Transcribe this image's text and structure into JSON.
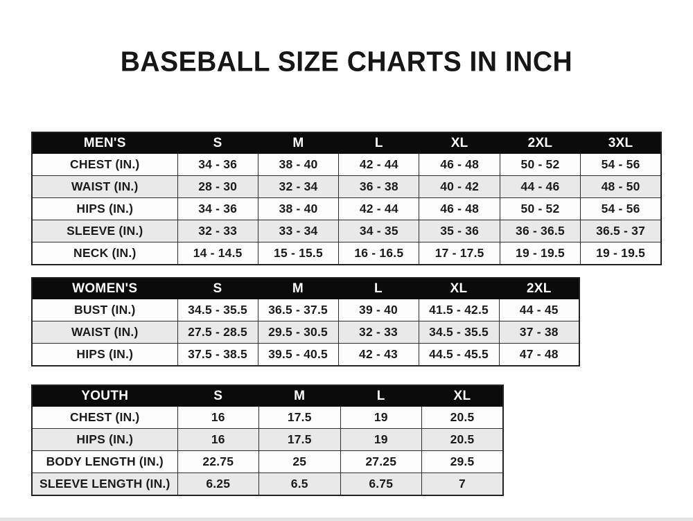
{
  "page": {
    "title": "BASEBALL SIZE CHARTS IN INCH"
  },
  "colors": {
    "header_bg": "#0b0b0b",
    "header_text": "#ffffff",
    "row_alt_bg": "#e9e9e9",
    "row_bg": "#fdfdfd",
    "border": "#2b2b2b",
    "text": "#1b1b1b"
  },
  "tables": [
    {
      "id": "mens",
      "name": "MEN'S",
      "header": [
        "MEN'S",
        "S",
        "M",
        "L",
        "XL",
        "2XL",
        "3XL"
      ],
      "rows": [
        [
          "CHEST (IN.)",
          "34 - 36",
          "38 - 40",
          "42 - 44",
          "46 - 48",
          "50 - 52",
          "54 - 56"
        ],
        [
          "WAIST (IN.)",
          "28 - 30",
          "32 - 34",
          "36 - 38",
          "40 - 42",
          "44 - 46",
          "48 - 50"
        ],
        [
          "HIPS (IN.)",
          "34 - 36",
          "38 - 40",
          "42 - 44",
          "46 - 48",
          "50 - 52",
          "54 - 56"
        ],
        [
          "SLEEVE (IN.)",
          "32 - 33",
          "33 - 34",
          "34 - 35",
          "35 - 36",
          "36 - 36.5",
          "36.5 - 37"
        ],
        [
          "NECK (IN.)",
          "14 - 14.5",
          "15 - 15.5",
          "16 - 16.5",
          "17 - 17.5",
          "19 - 19.5",
          "19 - 19.5"
        ]
      ]
    },
    {
      "id": "womens",
      "name": "WOMEN'S",
      "header": [
        "WOMEN'S",
        "S",
        "M",
        "L",
        "XL",
        "2XL"
      ],
      "rows": [
        [
          "BUST (IN.)",
          "34.5 - 35.5",
          "36.5 - 37.5",
          "39 - 40",
          "41.5 - 42.5",
          "44 - 45"
        ],
        [
          "WAIST (IN.)",
          "27.5 - 28.5",
          "29.5 - 30.5",
          "32 - 33",
          "34.5 - 35.5",
          "37 - 38"
        ],
        [
          "HIPS (IN.)",
          "37.5 - 38.5",
          "39.5 - 40.5",
          "42 - 43",
          "44.5 - 45.5",
          "47 - 48"
        ]
      ]
    },
    {
      "id": "youth",
      "name": "YOUTH",
      "header": [
        "YOUTH",
        "S",
        "M",
        "L",
        "XL"
      ],
      "rows": [
        [
          "CHEST (IN.)",
          "16",
          "17.5",
          "19",
          "20.5"
        ],
        [
          "HIPS (IN.)",
          "16",
          "17.5",
          "19",
          "20.5"
        ],
        [
          "BODY LENGTH (IN.)",
          "22.75",
          "25",
          "27.25",
          "29.5"
        ],
        [
          "SLEEVE LENGTH (IN.)",
          "6.25",
          "6.5",
          "6.75",
          "7"
        ]
      ]
    }
  ]
}
